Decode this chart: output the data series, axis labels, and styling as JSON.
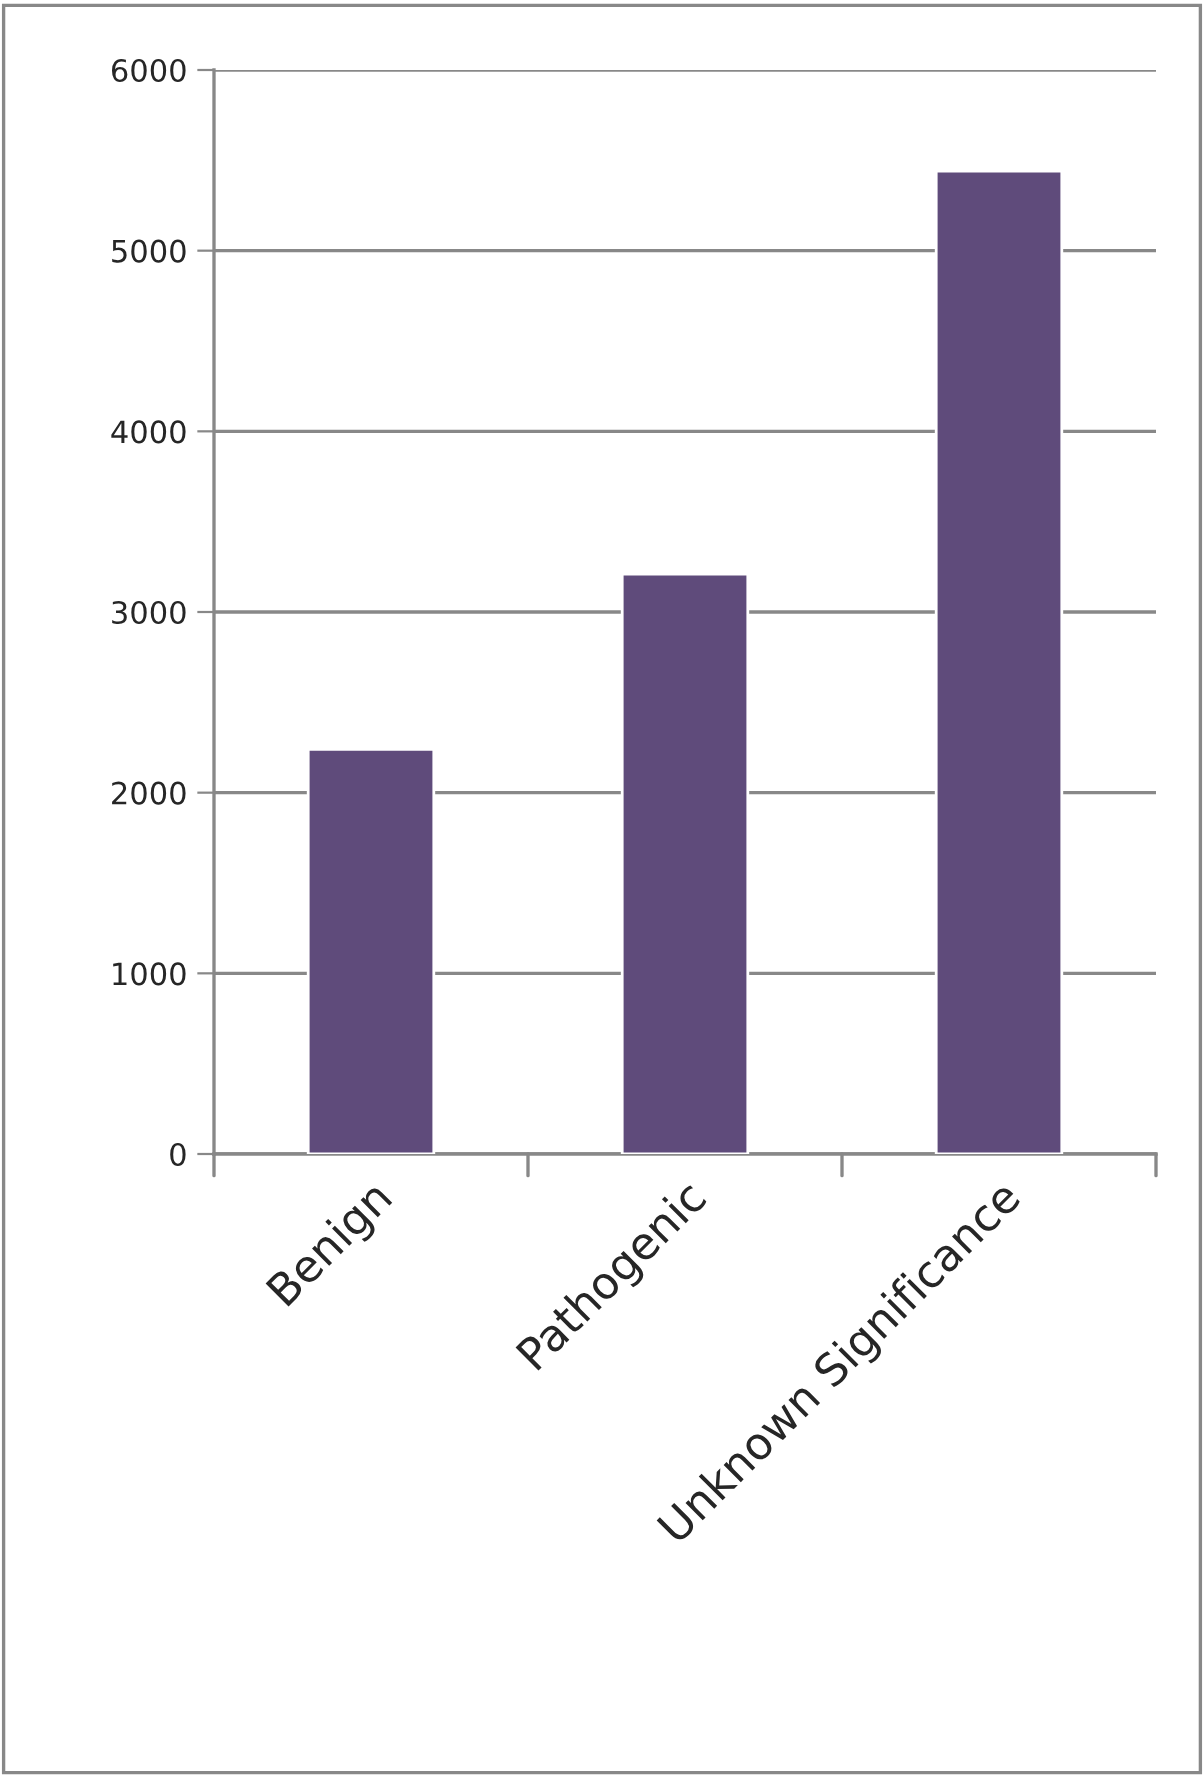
{
  "chart_data": {
    "type": "bar",
    "categories": [
      "Benign",
      "Pathogenic",
      "Unknown Significance"
    ],
    "values": [
      2240,
      3210,
      5440
    ],
    "color": "#5f4b7b",
    "ylim": [
      0,
      6000
    ],
    "yticks": [
      0,
      1000,
      2000,
      3000,
      4000,
      5000,
      6000
    ],
    "grid": "y"
  }
}
